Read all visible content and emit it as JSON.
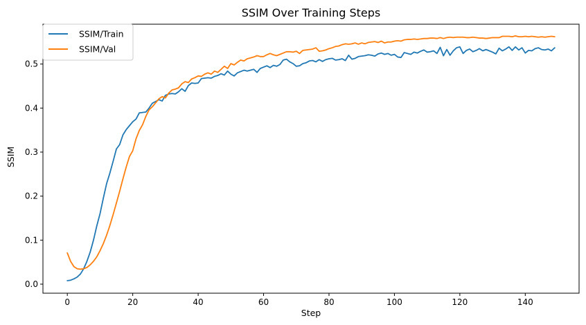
{
  "chart_data": {
    "type": "line",
    "title": "SSIM Over Training Steps",
    "xlabel": "Step",
    "ylabel": "SSIM",
    "xlim": [
      -7.45,
      156.45
    ],
    "ylim": [
      -0.0205,
      0.5905
    ],
    "xticks": [
      0,
      20,
      40,
      60,
      80,
      100,
      120,
      140
    ],
    "xtick_labels": [
      "0",
      "20",
      "40",
      "60",
      "80",
      "100",
      "120",
      "140"
    ],
    "yticks": [
      0.0,
      0.1,
      0.2,
      0.3,
      0.4,
      0.5
    ],
    "ytick_labels": [
      "0.0",
      "0.1",
      "0.2",
      "0.3",
      "0.4",
      "0.5"
    ],
    "grid": false,
    "legend_position": "top-left",
    "x": [
      0,
      1,
      2,
      3,
      4,
      5,
      6,
      7,
      8,
      9,
      10,
      11,
      12,
      13,
      14,
      15,
      16,
      17,
      18,
      19,
      20,
      21,
      22,
      23,
      24,
      25,
      26,
      27,
      28,
      29,
      30,
      31,
      32,
      33,
      34,
      35,
      36,
      37,
      38,
      39,
      40,
      41,
      42,
      43,
      44,
      45,
      46,
      47,
      48,
      49,
      50,
      51,
      52,
      53,
      54,
      55,
      56,
      57,
      58,
      59,
      60,
      61,
      62,
      63,
      64,
      65,
      66,
      67,
      68,
      69,
      70,
      71,
      72,
      73,
      74,
      75,
      76,
      77,
      78,
      79,
      80,
      81,
      82,
      83,
      84,
      85,
      86,
      87,
      88,
      89,
      90,
      91,
      92,
      93,
      94,
      95,
      96,
      97,
      98,
      99,
      100,
      101,
      102,
      103,
      104,
      105,
      106,
      107,
      108,
      109,
      110,
      111,
      112,
      113,
      114,
      115,
      116,
      117,
      118,
      119,
      120,
      121,
      122,
      123,
      124,
      125,
      126,
      127,
      128,
      129,
      130,
      131,
      132,
      133,
      134,
      135,
      136,
      137,
      138,
      139,
      140,
      141,
      142,
      143,
      144,
      145,
      146,
      147,
      148,
      149
    ],
    "series": [
      {
        "name": "SSIM/Train",
        "color": "#1f77b4",
        "values": [
          0.008,
          0.009,
          0.012,
          0.016,
          0.023,
          0.035,
          0.052,
          0.073,
          0.1,
          0.132,
          0.16,
          0.195,
          0.228,
          0.252,
          0.279,
          0.307,
          0.317,
          0.339,
          0.351,
          0.36,
          0.369,
          0.375,
          0.389,
          0.39,
          0.391,
          0.4,
          0.411,
          0.415,
          0.419,
          0.416,
          0.429,
          0.432,
          0.433,
          0.432,
          0.437,
          0.444,
          0.438,
          0.451,
          0.457,
          0.456,
          0.457,
          0.467,
          0.468,
          0.469,
          0.468,
          0.472,
          0.474,
          0.478,
          0.475,
          0.484,
          0.477,
          0.473,
          0.48,
          0.483,
          0.486,
          0.484,
          0.486,
          0.488,
          0.481,
          0.49,
          0.493,
          0.496,
          0.492,
          0.497,
          0.495,
          0.499,
          0.509,
          0.511,
          0.505,
          0.501,
          0.495,
          0.496,
          0.501,
          0.503,
          0.507,
          0.508,
          0.505,
          0.51,
          0.506,
          0.51,
          0.512,
          0.513,
          0.509,
          0.51,
          0.512,
          0.508,
          0.52,
          0.511,
          0.513,
          0.517,
          0.518,
          0.519,
          0.521,
          0.52,
          0.518,
          0.523,
          0.525,
          0.522,
          0.524,
          0.52,
          0.522,
          0.516,
          0.515,
          0.526,
          0.524,
          0.522,
          0.527,
          0.525,
          0.529,
          0.532,
          0.527,
          0.528,
          0.53,
          0.524,
          0.538,
          0.519,
          0.533,
          0.52,
          0.53,
          0.537,
          0.539,
          0.524,
          0.531,
          0.534,
          0.528,
          0.531,
          0.535,
          0.53,
          0.533,
          0.53,
          0.527,
          0.523,
          0.536,
          0.53,
          0.534,
          0.539,
          0.531,
          0.539,
          0.532,
          0.537,
          0.525,
          0.531,
          0.53,
          0.535,
          0.537,
          0.533,
          0.532,
          0.534,
          0.53,
          0.537
        ]
      },
      {
        "name": "SSIM/Val",
        "color": "#ff7f0e",
        "values": [
          0.071,
          0.052,
          0.04,
          0.035,
          0.034,
          0.035,
          0.038,
          0.044,
          0.052,
          0.062,
          0.076,
          0.092,
          0.111,
          0.133,
          0.158,
          0.184,
          0.211,
          0.239,
          0.266,
          0.29,
          0.303,
          0.33,
          0.349,
          0.362,
          0.381,
          0.396,
          0.403,
          0.412,
          0.421,
          0.426,
          0.423,
          0.434,
          0.441,
          0.443,
          0.446,
          0.455,
          0.46,
          0.458,
          0.466,
          0.469,
          0.473,
          0.472,
          0.477,
          0.48,
          0.477,
          0.484,
          0.481,
          0.488,
          0.495,
          0.49,
          0.501,
          0.498,
          0.504,
          0.509,
          0.507,
          0.512,
          0.514,
          0.516,
          0.519,
          0.517,
          0.517,
          0.521,
          0.524,
          0.521,
          0.519,
          0.522,
          0.525,
          0.528,
          0.528,
          0.527,
          0.529,
          0.524,
          0.531,
          0.532,
          0.533,
          0.534,
          0.537,
          0.529,
          0.53,
          0.532,
          0.535,
          0.537,
          0.54,
          0.541,
          0.544,
          0.546,
          0.545,
          0.546,
          0.548,
          0.545,
          0.548,
          0.546,
          0.549,
          0.55,
          0.551,
          0.549,
          0.552,
          0.548,
          0.55,
          0.55,
          0.552,
          0.553,
          0.552,
          0.555,
          0.556,
          0.556,
          0.557,
          0.556,
          0.557,
          0.558,
          0.558,
          0.559,
          0.559,
          0.558,
          0.56,
          0.558,
          0.56,
          0.561,
          0.56,
          0.561,
          0.561,
          0.561,
          0.56,
          0.56,
          0.561,
          0.56,
          0.559,
          0.559,
          0.558,
          0.559,
          0.56,
          0.56,
          0.56,
          0.563,
          0.563,
          0.563,
          0.562,
          0.564,
          0.562,
          0.562,
          0.563,
          0.562,
          0.563,
          0.562,
          0.561,
          0.562,
          0.561,
          0.562,
          0.563,
          0.562
        ]
      }
    ]
  }
}
